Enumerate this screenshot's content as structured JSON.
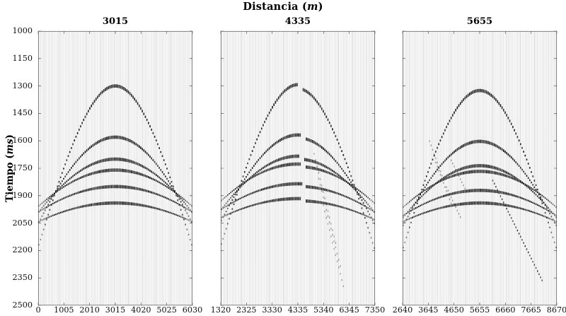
{
  "figure": {
    "title_parts": {
      "pre": "Distancia (",
      "it": "m",
      "post": ")"
    },
    "ylabel_parts": {
      "pre": "Tiempo (",
      "it": "ms",
      "post": ")"
    },
    "background_color": "#ffffff",
    "trace_color": "#c6c6c6",
    "trace_dark_color": "#a9a9a9",
    "event_color": "#000000",
    "axis_color": "#3a3a3a"
  },
  "chart_data": {
    "type": "line",
    "subtype": "seismic-wiggle-shot-gathers",
    "title": "Distancia (m)",
    "xlabel": "",
    "ylabel": "Tiempo (ms)",
    "ylim": [
      1000,
      2500
    ],
    "yticks": [
      1000,
      1150,
      1300,
      1450,
      1600,
      1750,
      1900,
      2050,
      2200,
      2350,
      2500
    ],
    "grid": false,
    "panels": [
      {
        "title": "3015",
        "xlim": [
          0,
          6030
        ],
        "xticks": [
          0,
          1005,
          2010,
          3015,
          4020,
          5025,
          6030
        ],
        "apex_x": 3015,
        "n_traces": 100,
        "hyperbolic_events": [
          {
            "t0_ms": 1300,
            "v_m_per_ms": 1.72
          },
          {
            "t0_ms": 1580,
            "v_m_per_ms": 2.3
          },
          {
            "t0_ms": 1700,
            "v_m_per_ms": 2.9
          },
          {
            "t0_ms": 1760,
            "v_m_per_ms": 3.5
          },
          {
            "t0_ms": 1850,
            "v_m_per_ms": 4.1
          },
          {
            "t0_ms": 1940,
            "v_m_per_ms": 4.7
          }
        ],
        "linear_events": []
      },
      {
        "title": "4335",
        "xlim": [
          1320,
          7350
        ],
        "xticks": [
          1320,
          2325,
          3330,
          4335,
          5340,
          6345,
          7350
        ],
        "apex_x": 4335,
        "n_traces": 100,
        "hyperbolic_events": [
          {
            "t0_ms": 1293,
            "v_m_per_ms": 1.72,
            "segments": [
              {
                "x_from": 1320,
                "x_to": 4340,
                "dt_ms": 0
              },
              {
                "x_from": 4520,
                "x_to": 7350,
                "dt_ms": 22
              }
            ]
          },
          {
            "t0_ms": 1568,
            "v_m_per_ms": 2.3,
            "segments": [
              {
                "x_from": 1320,
                "x_to": 4480,
                "dt_ms": 0
              },
              {
                "x_from": 4630,
                "x_to": 7350,
                "dt_ms": 16
              }
            ]
          },
          {
            "t0_ms": 1684,
            "v_m_per_ms": 2.9,
            "segments": [
              {
                "x_from": 1320,
                "x_to": 4420,
                "dt_ms": 0
              },
              {
                "x_from": 4570,
                "x_to": 7350,
                "dt_ms": 16
              }
            ]
          },
          {
            "t0_ms": 1727,
            "v_m_per_ms": 3.5,
            "segments": [
              {
                "x_from": 1320,
                "x_to": 4470,
                "dt_ms": 0
              },
              {
                "x_from": 4620,
                "x_to": 7350,
                "dt_ms": 14
              }
            ]
          },
          {
            "t0_ms": 1835,
            "v_m_per_ms": 4.1,
            "segments": [
              {
                "x_from": 1320,
                "x_to": 4500,
                "dt_ms": 0
              },
              {
                "x_from": 4650,
                "x_to": 7350,
                "dt_ms": 14
              }
            ]
          },
          {
            "t0_ms": 1916,
            "v_m_per_ms": 4.7,
            "segments": [
              {
                "x_from": 1320,
                "x_to": 4460,
                "dt_ms": 0
              },
              {
                "x_from": 4610,
                "x_to": 7350,
                "dt_ms": 12
              }
            ]
          }
        ],
        "linear_events": [
          {
            "x_from": 4950,
            "t_from": 1660,
            "x_to": 5850,
            "t_to": 2180,
            "strength": "faint"
          },
          {
            "x_from": 5120,
            "t_from": 1790,
            "x_to": 6020,
            "t_to": 2300,
            "strength": "faint"
          },
          {
            "x_from": 5290,
            "t_from": 1930,
            "x_to": 6140,
            "t_to": 2410,
            "strength": "faint"
          }
        ]
      },
      {
        "title": "5655",
        "xlim": [
          2640,
          8670
        ],
        "xticks": [
          2640,
          3645,
          4650,
          5655,
          6660,
          7665,
          8670
        ],
        "apex_x": 5655,
        "n_traces": 100,
        "hyperbolic_events": [
          {
            "t0_ms": 1325,
            "v_m_per_ms": 1.72
          },
          {
            "t0_ms": 1603,
            "v_m_per_ms": 2.3
          },
          {
            "t0_ms": 1736,
            "v_m_per_ms": 2.9
          },
          {
            "t0_ms": 1767,
            "v_m_per_ms": 3.5
          },
          {
            "t0_ms": 1871,
            "v_m_per_ms": 4.1
          },
          {
            "t0_ms": 1940,
            "v_m_per_ms": 4.7
          }
        ],
        "linear_events": [
          {
            "x_from": 3640,
            "t_from": 1580,
            "x_to": 4280,
            "t_to": 1830,
            "strength": "faint"
          },
          {
            "x_from": 3900,
            "t_from": 1705,
            "x_to": 4560,
            "t_to": 1950,
            "strength": "faint"
          },
          {
            "x_from": 4480,
            "t_from": 1690,
            "x_to": 5150,
            "t_to": 1880,
            "strength": "faint"
          },
          {
            "x_from": 4330,
            "t_from": 1845,
            "x_to": 4960,
            "t_to": 2035,
            "strength": "faint"
          },
          {
            "x_from": 6160,
            "t_from": 1815,
            "x_to": 8120,
            "t_to": 2370,
            "strength": "strong"
          }
        ]
      }
    ]
  }
}
